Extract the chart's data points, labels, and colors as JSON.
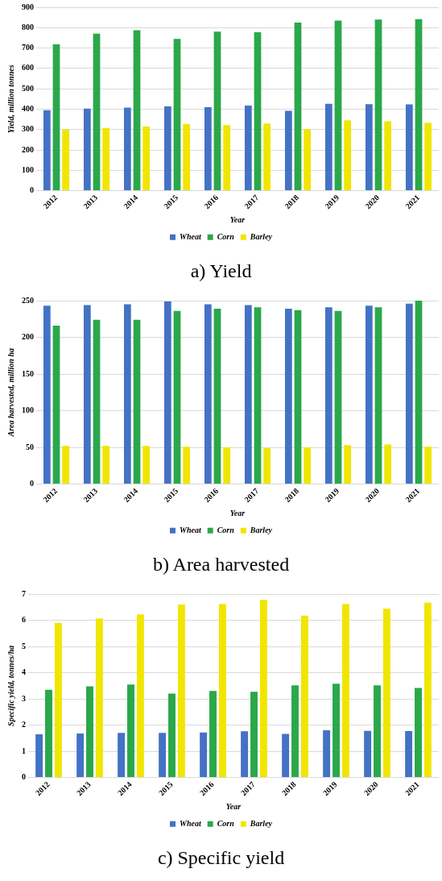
{
  "chart_data": [
    {
      "type": "bar",
      "title": "a) Yield",
      "xlabel": "Year",
      "ylabel": "Yield, million tonnes",
      "categories": [
        "2012",
        "2013",
        "2014",
        "2015",
        "2016",
        "2017",
        "2018",
        "2019",
        "2020",
        "2021"
      ],
      "series": [
        {
          "name": "Wheat",
          "color": "#4472c4",
          "values": [
            395,
            403,
            408,
            414,
            410,
            418,
            392,
            426,
            424,
            423
          ]
        },
        {
          "name": "Corn",
          "color": "#2aa84a",
          "values": [
            718,
            770,
            787,
            745,
            780,
            777,
            825,
            835,
            840,
            842
          ]
        },
        {
          "name": "Barley",
          "color": "#f0e600",
          "values": [
            300,
            308,
            315,
            328,
            322,
            330,
            302,
            345,
            340,
            332
          ]
        }
      ],
      "ylim": [
        0,
        900
      ],
      "yticks": [
        0,
        100,
        200,
        300,
        400,
        500,
        600,
        700,
        800,
        900
      ],
      "grid": "y",
      "legend": "bottom"
    },
    {
      "type": "bar",
      "title": "b) Area harvested",
      "xlabel": "Year",
      "ylabel": "Area harvested, million ha",
      "categories": [
        "2012",
        "2013",
        "2014",
        "2015",
        "2016",
        "2017",
        "2018",
        "2019",
        "2020",
        "2021"
      ],
      "series": [
        {
          "name": "Wheat",
          "color": "#4472c4",
          "values": [
            243,
            244,
            245,
            249,
            245,
            244,
            239,
            241,
            243,
            246
          ]
        },
        {
          "name": "Corn",
          "color": "#2aa84a",
          "values": [
            216,
            224,
            224,
            236,
            239,
            241,
            237,
            236,
            241,
            250
          ]
        },
        {
          "name": "Barley",
          "color": "#f0e600",
          "values": [
            52,
            52,
            52,
            51,
            50,
            49,
            50,
            53,
            54,
            51
          ]
        }
      ],
      "ylim": [
        0,
        250
      ],
      "yticks": [
        0,
        50,
        100,
        150,
        200,
        250
      ],
      "grid": "y",
      "legend": "bottom"
    },
    {
      "type": "bar",
      "title": "c) Specific yield",
      "xlabel": "Year",
      "ylabel": "Specific yield, tonnes/ha",
      "categories": [
        "2012",
        "2013",
        "2014",
        "2015",
        "2016",
        "2017",
        "2018",
        "2019",
        "2020",
        "2021"
      ],
      "series": [
        {
          "name": "Wheat",
          "color": "#4472c4",
          "values": [
            1.65,
            1.68,
            1.7,
            1.7,
            1.72,
            1.76,
            1.66,
            1.8,
            1.78,
            1.77
          ]
        },
        {
          "name": "Corn",
          "color": "#2aa84a",
          "values": [
            3.35,
            3.48,
            3.55,
            3.2,
            3.3,
            3.27,
            3.52,
            3.58,
            3.52,
            3.42
          ]
        },
        {
          "name": "Barley",
          "color": "#f0e600",
          "values": [
            5.9,
            6.07,
            6.22,
            6.6,
            6.62,
            6.78,
            6.18,
            6.62,
            6.44,
            6.67
          ]
        }
      ],
      "ylim": [
        0,
        7
      ],
      "yticks": [
        0,
        1,
        2,
        3,
        4,
        5,
        6,
        7
      ],
      "grid": "y",
      "legend": "bottom"
    }
  ]
}
